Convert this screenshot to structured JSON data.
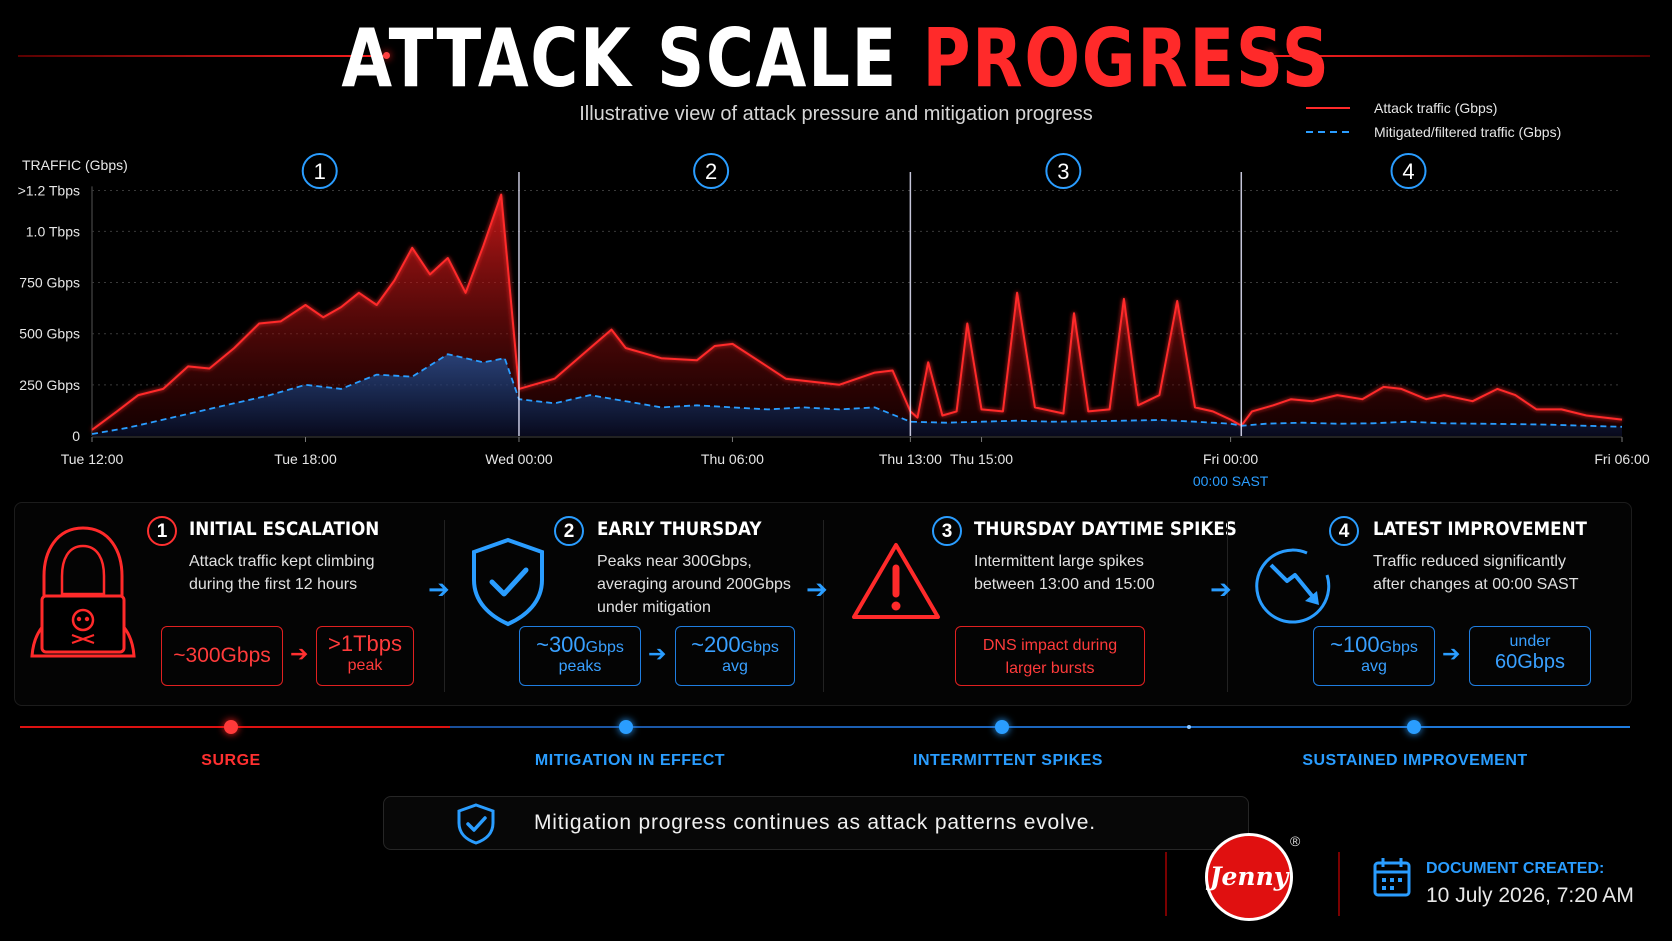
{
  "header": {
    "title_part1": "ATTACK SCALE",
    "title_part2": "PROGRESS",
    "subtitle": "Illustrative view of attack pressure and mitigation progress"
  },
  "legend": {
    "attack": "Attack traffic (Gbps)",
    "mitigated": "Mitigated/filtered traffic (Gbps)"
  },
  "colors": {
    "attack": "#ff2a2a",
    "mitigated": "#2a9dff",
    "background": "#000000"
  },
  "chart_data": {
    "type": "area",
    "ylabel": "TRAFFIC (Gbps)",
    "y_ticks": [
      "0",
      "250 Gbps",
      "500 Gbps",
      "750 Gbps",
      "1.0 Tbps",
      ">1.2 Tbps"
    ],
    "y_tick_values": [
      0,
      250,
      500,
      750,
      1000,
      1200
    ],
    "ylim": [
      0,
      1300
    ],
    "x_ticks": [
      "Tue 12:00",
      "Tue 18:00",
      "Wed 00:00",
      "Thu 06:00",
      "Thu 13:00",
      "Thu 15:00",
      "Fri 00:00",
      "Fri 06:00"
    ],
    "x_tick_positions": [
      0,
      6,
      12,
      18,
      23,
      25,
      32,
      43
    ],
    "x_range": [
      0,
      43
    ],
    "x_annotation": "00:00 SAST",
    "grid": true,
    "phase_markers": [
      "1",
      "2",
      "3",
      "4"
    ],
    "phase_centers": [
      6.4,
      17.4,
      27.3,
      37
    ],
    "dividers": [
      12,
      23,
      32.3
    ],
    "series": [
      {
        "name": "Attack traffic (Gbps)",
        "style": "solid",
        "points": [
          [
            0,
            30
          ],
          [
            0.7,
            120
          ],
          [
            1.3,
            200
          ],
          [
            2,
            230
          ],
          [
            2.7,
            340
          ],
          [
            3.3,
            330
          ],
          [
            4,
            430
          ],
          [
            4.7,
            550
          ],
          [
            5.3,
            560
          ],
          [
            6,
            640
          ],
          [
            6.5,
            580
          ],
          [
            7,
            630
          ],
          [
            7.5,
            700
          ],
          [
            8,
            640
          ],
          [
            8.5,
            760
          ],
          [
            9,
            920
          ],
          [
            9.5,
            790
          ],
          [
            10,
            870
          ],
          [
            10.5,
            700
          ],
          [
            11,
            930
          ],
          [
            11.5,
            1180
          ],
          [
            12,
            230
          ],
          [
            13,
            280
          ],
          [
            14,
            430
          ],
          [
            14.6,
            520
          ],
          [
            15,
            430
          ],
          [
            16,
            380
          ],
          [
            17,
            370
          ],
          [
            17.5,
            440
          ],
          [
            18,
            450
          ],
          [
            18.8,
            360
          ],
          [
            19.5,
            280
          ],
          [
            21,
            250
          ],
          [
            22,
            310
          ],
          [
            22.5,
            320
          ],
          [
            23,
            120
          ],
          [
            23.2,
            90
          ],
          [
            23.5,
            360
          ],
          [
            23.9,
            100
          ],
          [
            24.3,
            120
          ],
          [
            24.6,
            550
          ],
          [
            25,
            130
          ],
          [
            25.6,
            120
          ],
          [
            26,
            700
          ],
          [
            26.5,
            140
          ],
          [
            27.3,
            110
          ],
          [
            27.6,
            600
          ],
          [
            28,
            120
          ],
          [
            28.6,
            130
          ],
          [
            29,
            670
          ],
          [
            29.4,
            150
          ],
          [
            30,
            200
          ],
          [
            30.5,
            660
          ],
          [
            31,
            140
          ],
          [
            31.5,
            120
          ],
          [
            32,
            80
          ],
          [
            32.3,
            50
          ],
          [
            32.6,
            120
          ],
          [
            33.2,
            150
          ],
          [
            33.7,
            180
          ],
          [
            34.3,
            170
          ],
          [
            35,
            200
          ],
          [
            35.7,
            180
          ],
          [
            36.3,
            240
          ],
          [
            36.8,
            230
          ],
          [
            37.5,
            180
          ],
          [
            38,
            200
          ],
          [
            38.8,
            170
          ],
          [
            39.5,
            230
          ],
          [
            40,
            200
          ],
          [
            40.6,
            130
          ],
          [
            41.3,
            130
          ],
          [
            42,
            100
          ],
          [
            43,
            80
          ]
        ]
      },
      {
        "name": "Mitigated/filtered traffic (Gbps)",
        "style": "dashed",
        "points": [
          [
            0,
            10
          ],
          [
            1,
            40
          ],
          [
            2,
            80
          ],
          [
            3,
            120
          ],
          [
            4,
            160
          ],
          [
            5,
            200
          ],
          [
            6,
            250
          ],
          [
            7,
            230
          ],
          [
            8,
            300
          ],
          [
            9,
            290
          ],
          [
            10,
            400
          ],
          [
            11,
            360
          ],
          [
            11.6,
            380
          ],
          [
            12,
            180
          ],
          [
            13,
            160
          ],
          [
            14,
            200
          ],
          [
            15,
            170
          ],
          [
            16,
            140
          ],
          [
            17,
            150
          ],
          [
            18,
            140
          ],
          [
            19,
            130
          ],
          [
            20,
            140
          ],
          [
            21,
            130
          ],
          [
            22,
            140
          ],
          [
            23,
            70
          ],
          [
            24,
            65
          ],
          [
            25,
            70
          ],
          [
            26,
            75
          ],
          [
            27,
            70
          ],
          [
            28,
            72
          ],
          [
            29,
            75
          ],
          [
            30,
            78
          ],
          [
            31,
            70
          ],
          [
            32,
            60
          ],
          [
            32.3,
            50
          ],
          [
            33,
            60
          ],
          [
            34,
            65
          ],
          [
            35,
            60
          ],
          [
            36,
            62
          ],
          [
            37,
            70
          ],
          [
            38,
            62
          ],
          [
            39,
            60
          ],
          [
            40,
            58
          ],
          [
            41,
            55
          ],
          [
            42,
            50
          ],
          [
            43,
            45
          ]
        ]
      }
    ]
  },
  "cards": [
    {
      "num": "1",
      "title": "INITIAL ESCALATION",
      "text": [
        "Attack traffic kept climbing",
        "during the first 12 hours"
      ],
      "box1": {
        "value": "~300Gbps",
        "sub": ""
      },
      "box2": {
        "value": ">1Tbps",
        "sub": "peak"
      }
    },
    {
      "num": "2",
      "title": "EARLY THURSDAY",
      "text": [
        "Peaks near 300Gbps,",
        "averaging around 200Gbps",
        "under mitigation"
      ],
      "box1": {
        "value": "~300",
        "unit": "Gbps",
        "sub": "peaks"
      },
      "box2": {
        "value": "~200",
        "unit": "Gbps",
        "sub": "avg"
      }
    },
    {
      "num": "3",
      "title": "THURSDAY DAYTIME SPIKES",
      "text": [
        "Intermittent large spikes",
        "between 13:00 and 15:00"
      ],
      "box1": {
        "line1": "DNS impact during",
        "line2": "larger bursts"
      }
    },
    {
      "num": "4",
      "title": "LATEST IMPROVEMENT",
      "text": [
        "Traffic reduced significantly",
        "after changes at 00:00 SAST"
      ],
      "box1": {
        "value": "~100",
        "unit": "Gbps",
        "sub": "avg"
      },
      "box2": {
        "line1": "under",
        "value": "60",
        "unit": "Gbps"
      }
    }
  ],
  "timeline": {
    "labels": [
      "SURGE",
      "MITIGATION IN EFFECT",
      "INTERMITTENT SPIKES",
      "SUSTAINED IMPROVEMENT"
    ]
  },
  "banner": {
    "text": "Mitigation progress continues as attack patterns evolve."
  },
  "brand": {
    "logo_text": "Jenny",
    "registered": "®"
  },
  "document": {
    "label": "DOCUMENT CREATED:",
    "date": "10 July 2026, 7:20 AM"
  }
}
